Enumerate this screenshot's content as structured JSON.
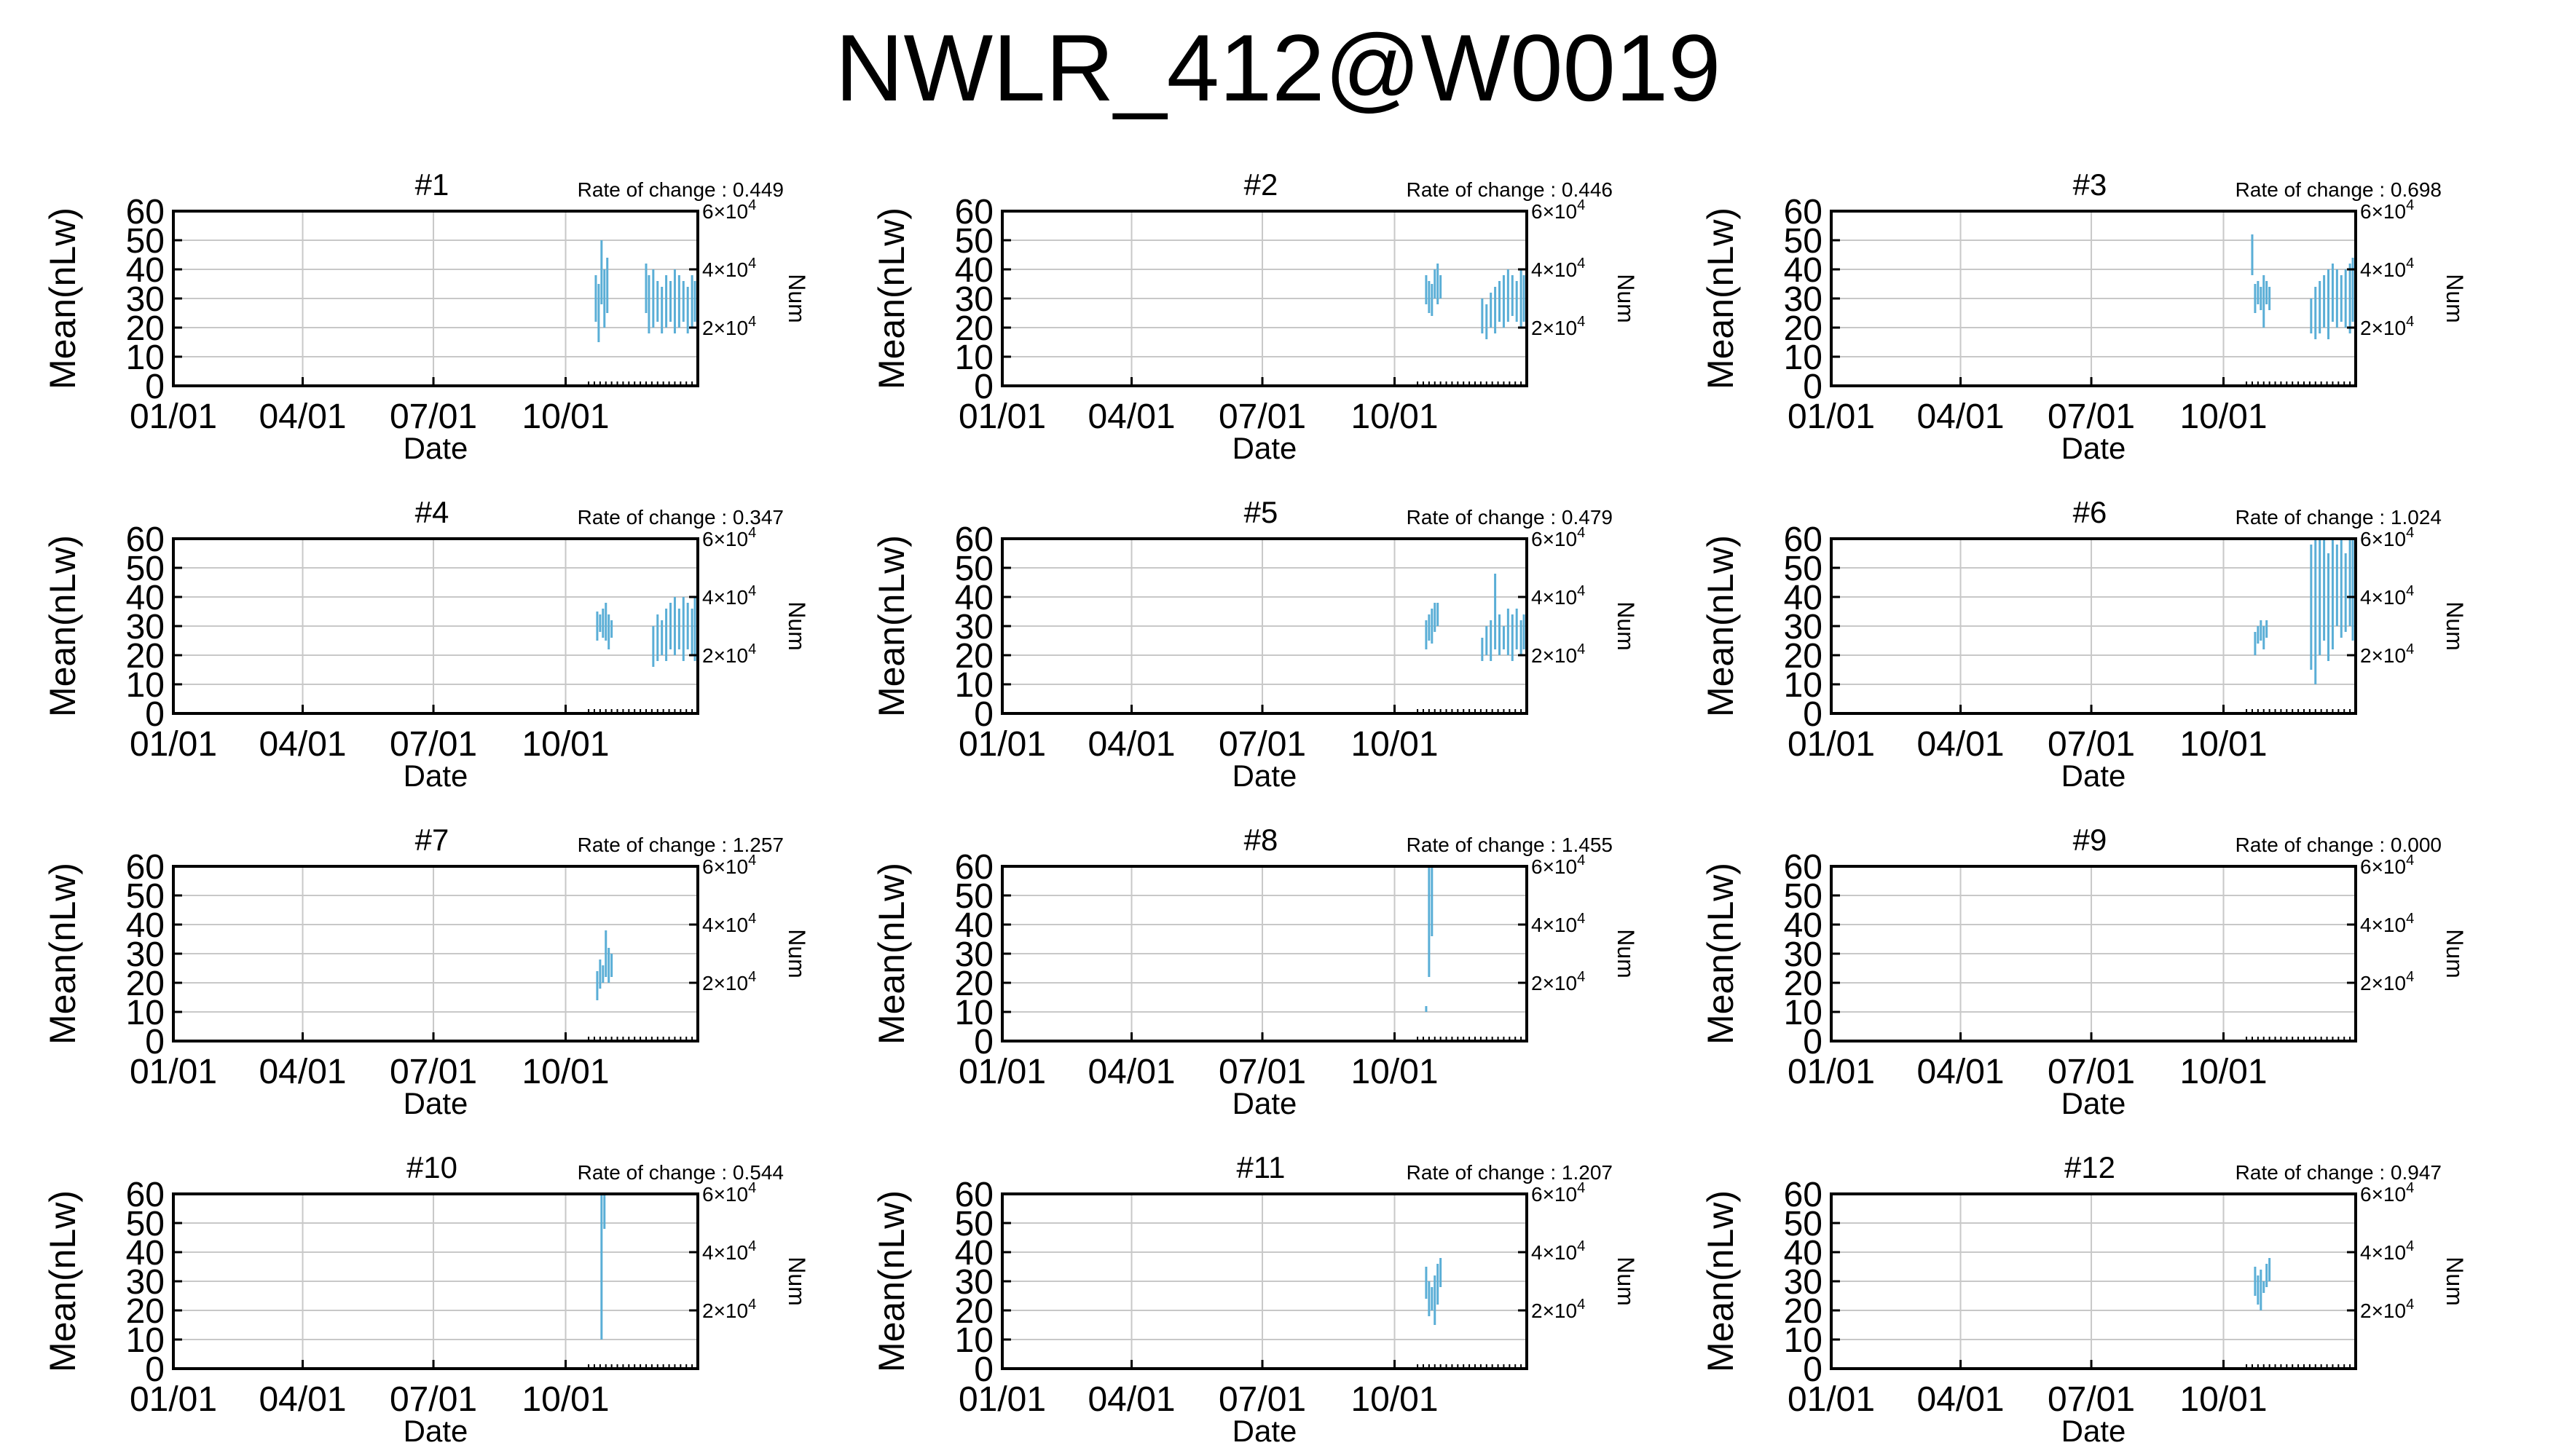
{
  "title": "NWLR_412@W0019",
  "chart_data": {
    "type": "line",
    "shared": {
      "xlabel": "Date",
      "ylabel": "Mean(nLw)",
      "y2label": "Num",
      "xticks": [
        "01/01",
        "04/01",
        "07/01",
        "10/01"
      ],
      "yticks": [
        "0",
        "10",
        "20",
        "30",
        "40",
        "50",
        "60"
      ],
      "ylim": [
        0,
        60
      ],
      "y2ticks": [
        {
          "base": "2×10",
          "exp": "4"
        },
        {
          "base": "4×10",
          "exp": "4"
        },
        {
          "base": "6×10",
          "exp": "4"
        }
      ],
      "y2lim": [
        0,
        60000
      ],
      "xlim_day": [
        1,
        366
      ],
      "grid": true,
      "rate_prefix": "Rate of change : ",
      "series_color": "#5aaed6"
    },
    "panels": [
      {
        "label": "#1",
        "rate": "0.449",
        "bars": [
          [
            295,
            22,
            38
          ],
          [
            297,
            15,
            35
          ],
          [
            299,
            28,
            50
          ],
          [
            301,
            20,
            40
          ],
          [
            303,
            25,
            44
          ],
          [
            330,
            25,
            42
          ],
          [
            332,
            18,
            38
          ],
          [
            335,
            20,
            40
          ],
          [
            338,
            22,
            36
          ],
          [
            341,
            18,
            34
          ],
          [
            344,
            20,
            38
          ],
          [
            347,
            22,
            36
          ],
          [
            350,
            18,
            40
          ],
          [
            353,
            20,
            38
          ],
          [
            356,
            22,
            36
          ],
          [
            359,
            18,
            34
          ],
          [
            362,
            20,
            38
          ],
          [
            364,
            22,
            36
          ]
        ]
      },
      {
        "label": "#2",
        "rate": "0.446",
        "bars": [
          [
            296,
            28,
            38
          ],
          [
            298,
            25,
            36
          ],
          [
            300,
            24,
            35
          ],
          [
            302,
            30,
            40
          ],
          [
            304,
            28,
            42
          ],
          [
            306,
            30,
            38
          ],
          [
            335,
            18,
            30
          ],
          [
            338,
            16,
            28
          ],
          [
            341,
            20,
            32
          ],
          [
            344,
            18,
            34
          ],
          [
            347,
            22,
            36
          ],
          [
            350,
            20,
            38
          ],
          [
            353,
            22,
            40
          ],
          [
            356,
            24,
            38
          ],
          [
            359,
            22,
            36
          ],
          [
            362,
            20,
            40
          ],
          [
            364,
            22,
            38
          ]
        ]
      },
      {
        "label": "#3",
        "rate": "0.698",
        "bars": [
          [
            294,
            38,
            52
          ],
          [
            296,
            25,
            35
          ],
          [
            298,
            28,
            36
          ],
          [
            300,
            26,
            34
          ],
          [
            302,
            20,
            38
          ],
          [
            304,
            28,
            36
          ],
          [
            306,
            26,
            34
          ],
          [
            335,
            18,
            30
          ],
          [
            338,
            16,
            34
          ],
          [
            341,
            18,
            36
          ],
          [
            344,
            20,
            38
          ],
          [
            347,
            16,
            40
          ],
          [
            350,
            22,
            42
          ],
          [
            353,
            20,
            40
          ],
          [
            356,
            22,
            38
          ],
          [
            359,
            20,
            40
          ],
          [
            362,
            18,
            42
          ],
          [
            364,
            22,
            44
          ]
        ]
      },
      {
        "label": "#4",
        "rate": "0.347",
        "bars": [
          [
            296,
            25,
            35
          ],
          [
            298,
            28,
            34
          ],
          [
            300,
            26,
            36
          ],
          [
            302,
            25,
            38
          ],
          [
            304,
            22,
            34
          ],
          [
            306,
            26,
            32
          ],
          [
            335,
            16,
            30
          ],
          [
            338,
            18,
            34
          ],
          [
            341,
            20,
            32
          ],
          [
            344,
            18,
            36
          ],
          [
            347,
            22,
            38
          ],
          [
            350,
            20,
            40
          ],
          [
            353,
            22,
            36
          ],
          [
            356,
            18,
            40
          ],
          [
            359,
            22,
            38
          ],
          [
            362,
            20,
            36
          ],
          [
            364,
            18,
            40
          ]
        ]
      },
      {
        "label": "#5",
        "rate": "0.479",
        "bars": [
          [
            296,
            22,
            32
          ],
          [
            298,
            25,
            34
          ],
          [
            300,
            24,
            36
          ],
          [
            302,
            28,
            38
          ],
          [
            304,
            30,
            38
          ],
          [
            335,
            18,
            26
          ],
          [
            338,
            20,
            30
          ],
          [
            341,
            18,
            32
          ],
          [
            344,
            22,
            48
          ],
          [
            347,
            20,
            34
          ],
          [
            350,
            22,
            30
          ],
          [
            353,
            20,
            36
          ],
          [
            356,
            18,
            34
          ],
          [
            359,
            22,
            36
          ],
          [
            362,
            20,
            32
          ],
          [
            364,
            22,
            34
          ]
        ]
      },
      {
        "label": "#6",
        "rate": "1.024",
        "bars": [
          [
            296,
            20,
            28
          ],
          [
            298,
            24,
            30
          ],
          [
            300,
            25,
            32
          ],
          [
            302,
            22,
            30
          ],
          [
            304,
            26,
            32
          ],
          [
            335,
            15,
            58
          ],
          [
            338,
            10,
            60
          ],
          [
            341,
            20,
            60
          ],
          [
            344,
            25,
            60
          ],
          [
            347,
            18,
            55
          ],
          [
            350,
            22,
            60
          ],
          [
            353,
            30,
            58
          ],
          [
            356,
            26,
            60
          ],
          [
            359,
            28,
            55
          ],
          [
            362,
            30,
            60
          ],
          [
            364,
            25,
            60
          ]
        ]
      },
      {
        "label": "#7",
        "rate": "1.257",
        "bars": [
          [
            296,
            14,
            24
          ],
          [
            298,
            18,
            28
          ],
          [
            300,
            20,
            26
          ],
          [
            302,
            22,
            38
          ],
          [
            304,
            20,
            32
          ],
          [
            306,
            22,
            30
          ]
        ]
      },
      {
        "label": "#8",
        "rate": "1.455",
        "bars": [
          [
            296,
            10,
            12
          ],
          [
            298,
            22,
            60
          ],
          [
            300,
            36,
            60
          ]
        ]
      },
      {
        "label": "#9",
        "rate": "0.000",
        "bars": []
      },
      {
        "label": "#10",
        "rate": "0.544",
        "bars": [
          [
            299,
            10,
            60
          ],
          [
            301,
            48,
            60
          ]
        ]
      },
      {
        "label": "#11",
        "rate": "1.207",
        "bars": [
          [
            296,
            24,
            35
          ],
          [
            298,
            18,
            30
          ],
          [
            300,
            20,
            28
          ],
          [
            302,
            15,
            32
          ],
          [
            304,
            22,
            36
          ],
          [
            306,
            28,
            38
          ]
        ]
      },
      {
        "label": "#12",
        "rate": "0.947",
        "bars": [
          [
            296,
            25,
            35
          ],
          [
            298,
            22,
            32
          ],
          [
            300,
            20,
            34
          ],
          [
            302,
            26,
            30
          ],
          [
            304,
            28,
            36
          ],
          [
            306,
            30,
            38
          ]
        ]
      }
    ]
  }
}
